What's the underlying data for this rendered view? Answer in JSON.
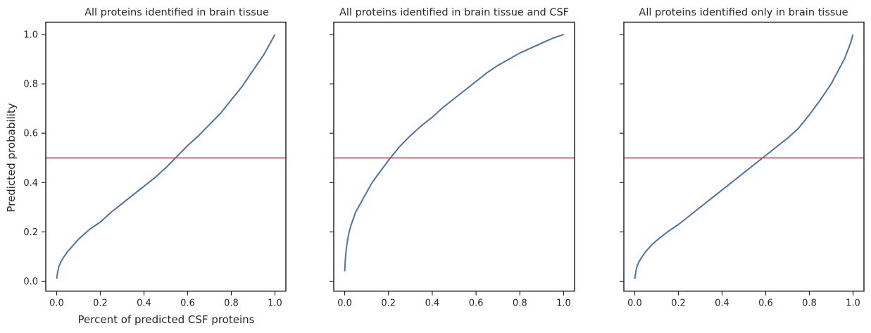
{
  "chart_data": [
    {
      "type": "line",
      "title": "All proteins identified in brain tissue",
      "xlabel": "Percent of predicted CSF proteins",
      "ylabel": "Predicted probability",
      "xlim": [
        -0.05,
        1.05
      ],
      "ylim": [
        -0.04,
        1.05
      ],
      "xticks": [
        "0.0",
        "0.2",
        "0.4",
        "0.6",
        "0.8",
        "1.0"
      ],
      "yticks": [
        "0.0",
        "0.2",
        "0.4",
        "0.6",
        "0.8",
        "1.0"
      ],
      "grid": false,
      "series": [
        {
          "color": "#4c72b0",
          "x": [
            0.0,
            0.005,
            0.01,
            0.02,
            0.03,
            0.05,
            0.075,
            0.1,
            0.15,
            0.2,
            0.25,
            0.3,
            0.35,
            0.4,
            0.45,
            0.5,
            0.55,
            0.6,
            0.65,
            0.7,
            0.75,
            0.8,
            0.85,
            0.9,
            0.95,
            1.0
          ],
          "y": [
            0.01,
            0.04,
            0.06,
            0.08,
            0.095,
            0.12,
            0.145,
            0.17,
            0.21,
            0.24,
            0.28,
            0.315,
            0.35,
            0.385,
            0.42,
            0.46,
            0.505,
            0.55,
            0.59,
            0.635,
            0.68,
            0.735,
            0.79,
            0.855,
            0.92,
            1.0
          ]
        }
      ],
      "reference_line": {
        "y": 0.5,
        "color": "#c44e52"
      }
    },
    {
      "type": "line",
      "title": "All proteins identified in brain tissue and CSF",
      "xlabel": "",
      "ylabel": "",
      "xlim": [
        -0.05,
        1.05
      ],
      "ylim": [
        -0.04,
        1.05
      ],
      "xticks": [
        "0.0",
        "0.2",
        "0.4",
        "0.6",
        "0.8",
        "1.0"
      ],
      "yticks": [],
      "grid": false,
      "series": [
        {
          "color": "#4c72b0",
          "x": [
            0.0,
            0.003,
            0.006,
            0.01,
            0.02,
            0.03,
            0.05,
            0.075,
            0.1,
            0.125,
            0.15,
            0.2,
            0.25,
            0.3,
            0.35,
            0.4,
            0.45,
            0.5,
            0.55,
            0.6,
            0.65,
            0.7,
            0.75,
            0.8,
            0.85,
            0.9,
            0.95,
            1.0
          ],
          "y": [
            0.04,
            0.09,
            0.12,
            0.15,
            0.2,
            0.23,
            0.28,
            0.32,
            0.36,
            0.4,
            0.43,
            0.49,
            0.545,
            0.59,
            0.63,
            0.665,
            0.705,
            0.74,
            0.775,
            0.81,
            0.845,
            0.875,
            0.9,
            0.925,
            0.945,
            0.965,
            0.985,
            1.0
          ]
        }
      ],
      "reference_line": {
        "y": 0.5,
        "color": "#c44e52"
      }
    },
    {
      "type": "line",
      "title": "All proteins identified only in brain tissue",
      "xlabel": "",
      "ylabel": "",
      "xlim": [
        -0.05,
        1.05
      ],
      "ylim": [
        -0.04,
        1.05
      ],
      "xticks": [
        "0.0",
        "0.2",
        "0.4",
        "0.6",
        "0.8",
        "1.0"
      ],
      "yticks": [],
      "grid": false,
      "series": [
        {
          "color": "#4c72b0",
          "x": [
            0.0,
            0.005,
            0.01,
            0.02,
            0.03,
            0.05,
            0.075,
            0.1,
            0.15,
            0.2,
            0.25,
            0.3,
            0.35,
            0.4,
            0.45,
            0.5,
            0.55,
            0.6,
            0.65,
            0.7,
            0.75,
            0.8,
            0.85,
            0.9,
            0.93,
            0.96,
            0.98,
            0.99,
            1.0
          ],
          "y": [
            0.01,
            0.04,
            0.06,
            0.08,
            0.095,
            0.12,
            0.145,
            0.165,
            0.2,
            0.23,
            0.265,
            0.3,
            0.335,
            0.37,
            0.405,
            0.44,
            0.475,
            0.51,
            0.545,
            0.58,
            0.62,
            0.675,
            0.735,
            0.8,
            0.85,
            0.9,
            0.945,
            0.97,
            1.0
          ]
        }
      ],
      "reference_line": {
        "y": 0.5,
        "color": "#c44e52"
      }
    }
  ]
}
